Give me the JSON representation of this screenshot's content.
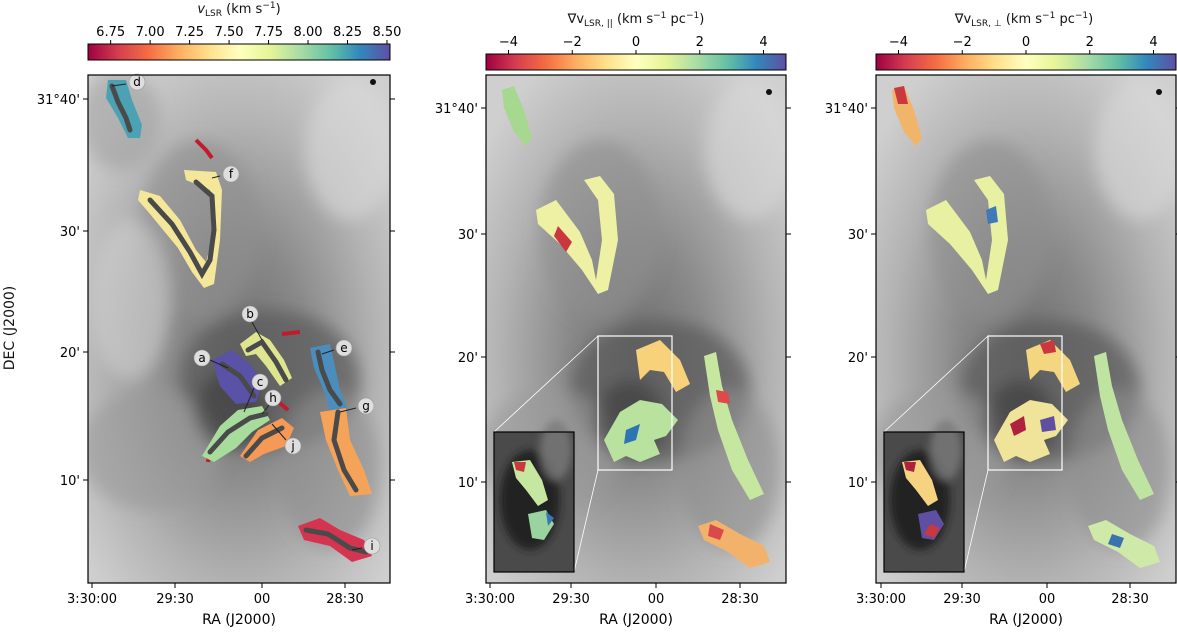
{
  "panels": [
    {
      "colorbar_label": "v",
      "colorbar_label_sub": "LSR",
      "colorbar_label_unit": " (km s",
      "colorbar_label_exp": "−1",
      "colorbar_label_end": ")",
      "colorbar_ticks": [
        "6.75",
        "7.00",
        "7.25",
        "7.50",
        "7.75",
        "8.00",
        "8.25",
        "8.50"
      ],
      "colormap": "Spectral"
    },
    {
      "colorbar_label": "∇v",
      "colorbar_label_sub": "LSR, ||",
      "colorbar_label_unit": " (km s",
      "colorbar_label_exp": "−1",
      "colorbar_label_mid": " pc",
      "colorbar_label_exp2": "−1",
      "colorbar_label_end": ")",
      "colorbar_ticks": [
        "−4",
        "−2",
        "0",
        "2",
        "4"
      ],
      "colormap": "Spectral"
    },
    {
      "colorbar_label": "∇v",
      "colorbar_label_sub": "LSR, ⊥",
      "colorbar_label_unit": " (km s",
      "colorbar_label_exp": "−1",
      "colorbar_label_mid": " pc",
      "colorbar_label_exp2": "−1",
      "colorbar_label_end": ")",
      "colorbar_ticks": [
        "−4",
        "−2",
        "0",
        "2",
        "4"
      ],
      "colormap": "Spectral"
    }
  ],
  "x_axis": {
    "title": "RA (J2000)",
    "ticks": [
      "3:30:00",
      "29:30",
      "00",
      "28:30"
    ]
  },
  "y_axis": {
    "title": "DEC (J2000)",
    "ticks": [
      "31°40'",
      "30'",
      "20'",
      "10'"
    ]
  },
  "filament_labels": [
    "a",
    "b",
    "c",
    "d",
    "e",
    "f",
    "g",
    "h",
    "i",
    "j"
  ],
  "colors": {
    "background_gray": "#a9a9a9",
    "spine": "#4a4a4a",
    "frame": "#000000",
    "inset_box": "#ffffff"
  }
}
